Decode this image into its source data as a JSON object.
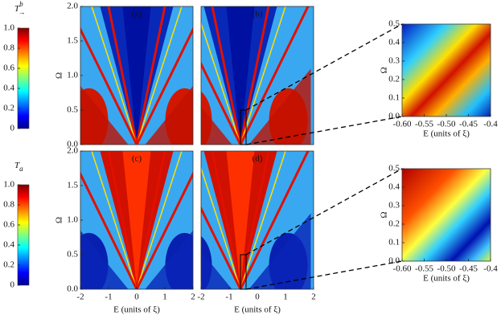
{
  "chart_data": [
    {
      "type": "colorbar",
      "title": "T",
      "title_sup": "b",
      "title_sub": "→",
      "ylim": [
        0,
        1
      ],
      "yticks": [
        0,
        0.2,
        0.4,
        0.6,
        0.8,
        {
          "value": 1,
          "label": "1.0"
        }
      ]
    },
    {
      "type": "colorbar",
      "title": "T",
      "title_sub": "a",
      "ylim": [
        0,
        1
      ],
      "yticks": [
        0,
        0.2,
        0.4,
        0.6,
        0.8,
        {
          "value": 1,
          "label": "1.0"
        }
      ]
    },
    {
      "type": "heatmap",
      "label": "(a)",
      "ylabel": "Ω",
      "xlim": [
        -2,
        2
      ],
      "ylim": [
        0,
        2
      ],
      "yticks": [
        {
          "value": 0,
          "label": "0.0"
        },
        0.5,
        {
          "value": 1,
          "label": "1.0"
        },
        1.5,
        {
          "value": 2,
          "label": "2.0"
        }
      ]
    },
    {
      "type": "heatmap",
      "label": "(b)",
      "xlim": [
        -2,
        2
      ],
      "ylim": [
        0,
        2
      ]
    },
    {
      "type": "heatmap",
      "label": "(c)",
      "ylabel": "Ω",
      "xlabel": "E (units of ξ)",
      "xlim": [
        -2,
        2
      ],
      "ylim": [
        0,
        2
      ],
      "xticks": [
        -2,
        -1,
        0,
        1,
        2
      ],
      "yticks": [
        {
          "value": 0,
          "label": "0.0"
        },
        0.5,
        {
          "value": 1,
          "label": "1.0"
        },
        1.5,
        {
          "value": 2,
          "label": "2.0"
        }
      ]
    },
    {
      "type": "heatmap",
      "label": "(d)",
      "xlabel": "E (units of ξ)",
      "xlim": [
        -2,
        2
      ],
      "ylim": [
        0,
        2
      ],
      "xticks": [
        -2,
        -1,
        0,
        1,
        2
      ]
    },
    {
      "type": "inset",
      "ylabel": "Ω",
      "xlabel": "E (units of ξ)",
      "xlim": [
        -0.6,
        -0.4
      ],
      "ylim": [
        0,
        0.5
      ],
      "xticks": [
        {
          "value": -0.6,
          "label": "-0.60"
        },
        -0.55,
        {
          "value": -0.5,
          "label": "-0.50"
        },
        -0.45,
        -0.4
      ],
      "yticks": [
        {
          "value": 0,
          "label": "0.0"
        },
        0.1,
        0.2,
        0.3,
        0.4,
        0.5
      ]
    },
    {
      "type": "inset",
      "ylabel": "Ω",
      "xlabel": "E (units of ξ)",
      "xlim": [
        -0.6,
        -0.4
      ],
      "ylim": [
        0,
        0.5
      ],
      "xticks": [
        {
          "value": -0.6,
          "label": "-0.60"
        },
        -0.55,
        {
          "value": -0.5,
          "label": "-0.50"
        },
        -0.45,
        -0.4
      ],
      "yticks": [
        {
          "value": 0,
          "label": "0.0"
        },
        0.1,
        0.2,
        0.3,
        0.4,
        0.5
      ]
    }
  ]
}
